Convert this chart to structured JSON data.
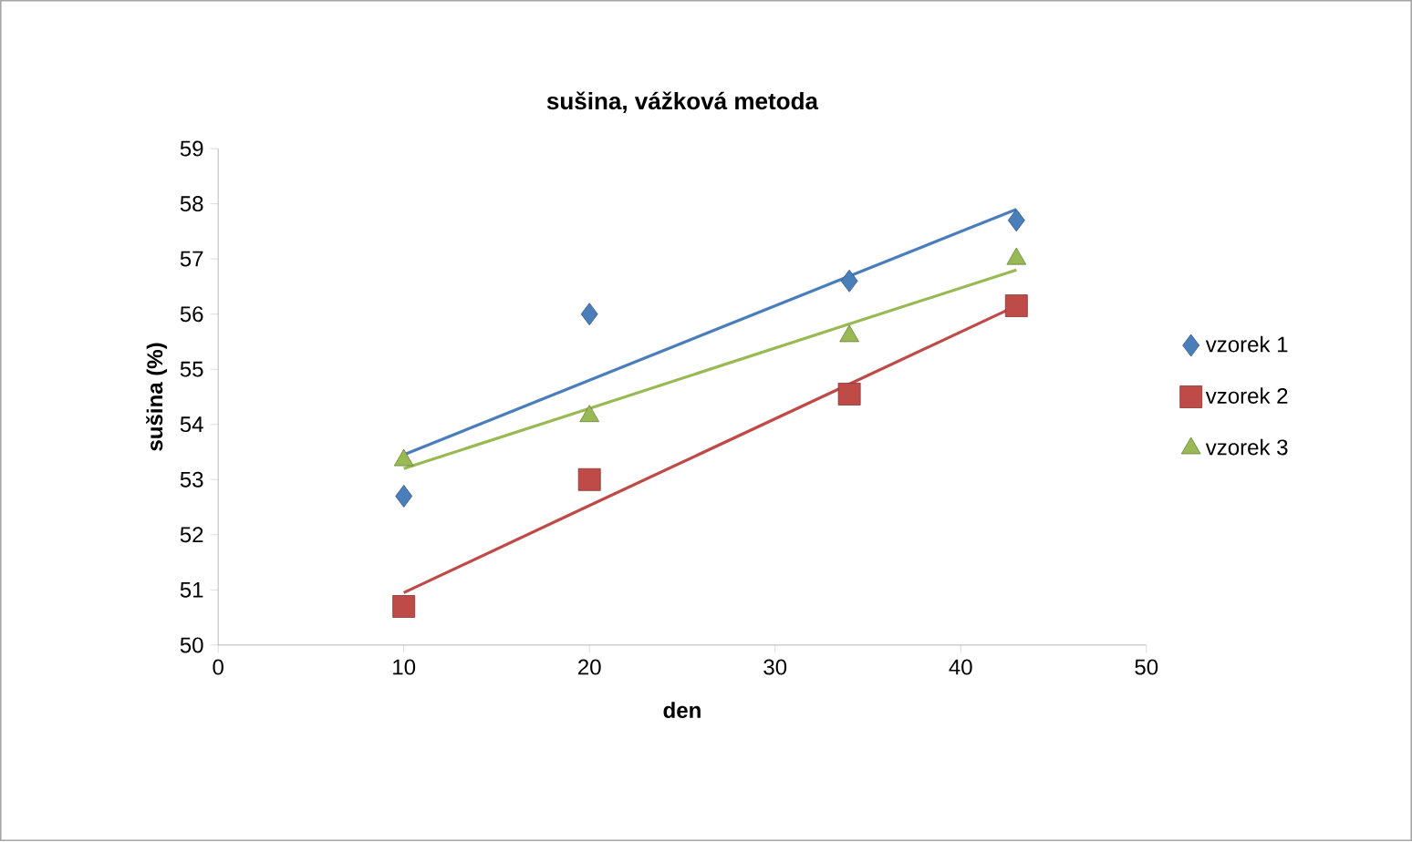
{
  "chart_data": {
    "type": "scatter",
    "title": "sušina, vážková metoda",
    "xlabel": "den",
    "ylabel": "sušina (%)",
    "x": [
      10,
      20,
      34,
      43
    ],
    "series": [
      {
        "name": "vzorek 1",
        "color": "#4a7ebb",
        "marker": "diamond",
        "values": [
          52.7,
          56.0,
          56.6,
          57.7
        ]
      },
      {
        "name": "vzorek 2",
        "color": "#be4b48",
        "marker": "square",
        "values": [
          50.7,
          53.0,
          54.55,
          56.15
        ]
      },
      {
        "name": "vzorek 3",
        "color": "#98b954",
        "marker": "triangle",
        "values": [
          53.35,
          54.15,
          55.6,
          57.0
        ]
      },
      {
        "type": "line",
        "color": "#4a7ebb",
        "values": [
          53.45,
          54.8,
          56.69,
          57.9
        ],
        "line_style": "solid",
        "marker": "none"
      },
      {
        "type": "line",
        "color": "#be4b48",
        "values": [
          50.95,
          52.53,
          54.73,
          56.15
        ],
        "line_style": "solid",
        "marker": "none"
      },
      {
        "type": "line",
        "color": "#98b954",
        "values": [
          53.2,
          54.29,
          55.82,
          56.8
        ],
        "line_style": "solid",
        "marker": "none"
      }
    ],
    "xlim": [
      0,
      50
    ],
    "xticks": [
      0,
      10,
      20,
      30,
      40,
      50
    ],
    "ylim": [
      50,
      59
    ],
    "yticks": [
      50,
      51,
      52,
      53,
      54,
      55,
      56,
      57,
      58,
      59
    ],
    "grid": false,
    "legend": "right"
  }
}
